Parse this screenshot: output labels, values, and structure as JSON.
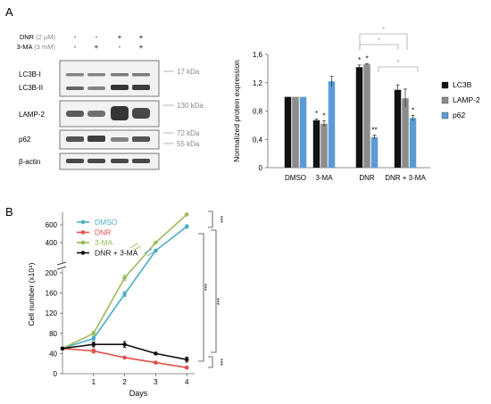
{
  "panels": {
    "a": "A",
    "b": "B"
  },
  "blot": {
    "treat_rows": [
      {
        "label": "DNR",
        "unit": " (2 µM)",
        "signs": [
          "-",
          "-",
          "+",
          "+"
        ]
      },
      {
        "label": "3-MA",
        "unit": " (3 mM)",
        "signs": [
          "-",
          "+",
          "-",
          "+"
        ]
      }
    ],
    "bands": [
      "LC3B-I",
      "LC3B-II",
      "LAMP-2",
      "p62",
      "β-actin"
    ],
    "kda": [
      "17 kDa",
      "130 kDa",
      "72 kDa",
      "55 kDa"
    ]
  },
  "chart_data": [
    {
      "type": "bar",
      "ylabel": "Normalized protein expression",
      "ylim": [
        0,
        1.6
      ],
      "yticks": [
        "0",
        "0,4",
        "0,8",
        "1,2",
        "1,6"
      ],
      "categories": [
        "DMSO",
        "3-MA",
        "DNR",
        "DNR + 3-MA"
      ],
      "series": [
        {
          "name": "LC3B",
          "color": "#111111",
          "values": [
            1.0,
            0.67,
            1.42,
            1.1
          ],
          "err": [
            0,
            0.02,
            0.03,
            0.07
          ],
          "sig": [
            "",
            "*",
            "*",
            ""
          ]
        },
        {
          "name": "LAMP-2",
          "color": "#8c8c8c",
          "values": [
            1.0,
            0.62,
            1.46,
            0.98
          ],
          "err": [
            0,
            0.04,
            0.01,
            0.13
          ],
          "sig": [
            "",
            "*",
            "*",
            ""
          ]
        },
        {
          "name": "p62",
          "color": "#5b9bd5",
          "values": [
            1.0,
            1.22,
            0.43,
            0.7
          ],
          "err": [
            0,
            0.07,
            0.03,
            0.04
          ],
          "sig": [
            "",
            "",
            "**",
            "*"
          ]
        }
      ],
      "brackets": [
        "*",
        "*",
        "*"
      ],
      "legend": "right"
    },
    {
      "type": "line",
      "xlabel": "Days",
      "ylabel": "Cell number (x10⁴)",
      "x": [
        0,
        1,
        2,
        3,
        4
      ],
      "yticks_low": [
        "0",
        "40",
        "80",
        "120",
        "160",
        "200"
      ],
      "yticks_high": [
        "400",
        "600"
      ],
      "series": [
        {
          "name": "DMSO",
          "color": "#4bacc6",
          "values": [
            50,
            70,
            158,
            310,
            580
          ],
          "err": [
            2,
            4,
            5,
            6,
            20
          ]
        },
        {
          "name": "DNR",
          "color": "#e0504a",
          "values": [
            50,
            45,
            32,
            22,
            12
          ],
          "err": [
            2,
            4,
            2,
            2,
            2
          ]
        },
        {
          "name": "3-MA",
          "color": "#9bbb59",
          "values": [
            50,
            80,
            190,
            400,
            715
          ],
          "err": [
            2,
            4,
            5,
            8,
            15
          ]
        },
        {
          "name": "DNR + 3-MA",
          "color": "#111111",
          "values": [
            50,
            58,
            58,
            40,
            28
          ],
          "err": [
            2,
            5,
            6,
            2,
            5
          ]
        }
      ],
      "sig": [
        "***",
        "***",
        "***",
        "***"
      ],
      "legend": "top-left"
    }
  ]
}
